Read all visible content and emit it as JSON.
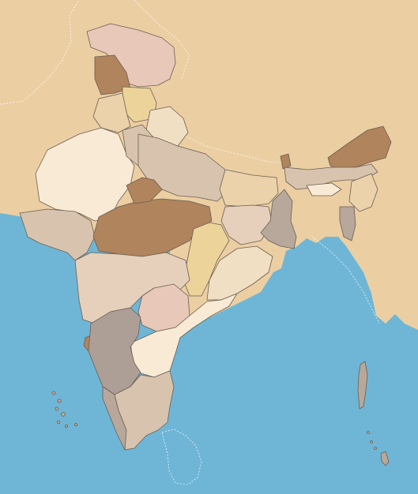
{
  "map": {
    "colors": {
      "sea": "#6fb6d6",
      "land": "#ebcfa3",
      "outline": "#6b5e52",
      "border": "#ffffff"
    },
    "palette": {
      "dark_brown": "#b0845c",
      "pink": "#e8c8b8",
      "gold": "#ebd39a",
      "cream": "#f8ead5",
      "taupe": "#d8c4ae",
      "grey": "#b7a89b",
      "mauve": "#ad9e96",
      "peach": "#ebd2ab",
      "beige": "#e6d0bb",
      "light_peach": "#f1dfc4"
    }
  }
}
